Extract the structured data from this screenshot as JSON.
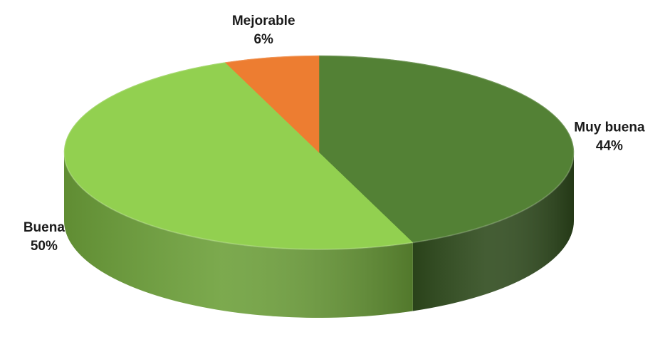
{
  "chart_data": {
    "type": "pie",
    "style": "3d",
    "slices": [
      {
        "label": "Muy buena",
        "value": 44,
        "display": "44%",
        "color": "#538135",
        "side_color": "#2f4b1d"
      },
      {
        "label": "Buena",
        "value": 50,
        "display": "50%",
        "color": "#92d050",
        "side_color": "#6da03a"
      },
      {
        "label": "Mejorable",
        "value": 6,
        "display": "6%",
        "color": "#ed7d31",
        "side_color": "#b35e22"
      }
    ],
    "start_angle_deg": 0,
    "direction": "clockwise",
    "legend": "none"
  }
}
